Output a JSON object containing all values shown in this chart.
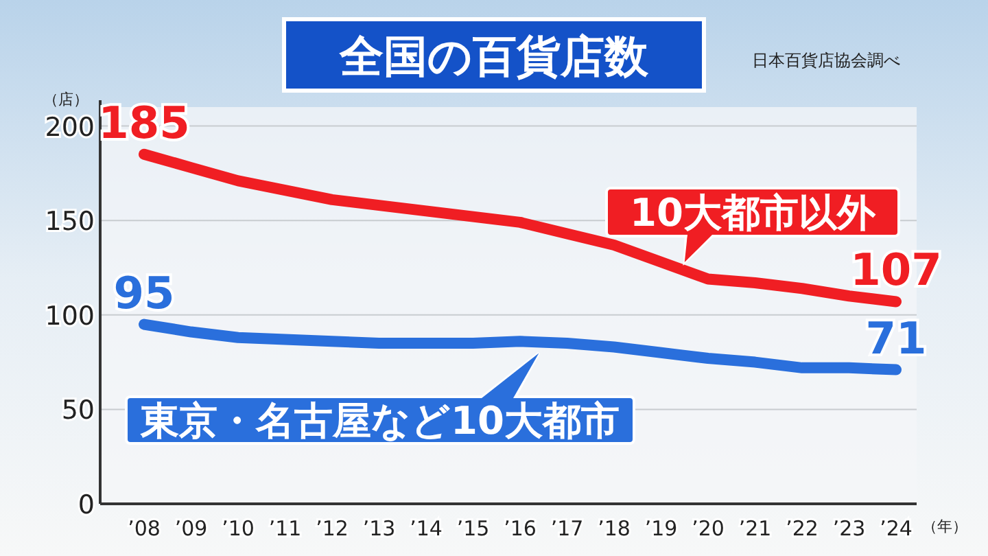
{
  "chart_data": {
    "type": "line",
    "title": "全国の百貨店数",
    "ylabel": "（店）",
    "xlabel": "（年）",
    "categories": [
      "’08",
      "’09",
      "’10",
      "’11",
      "’12",
      "’13",
      "’14",
      "’15",
      "’16",
      "’17",
      "’18",
      "’19",
      "’20",
      "’21",
      "’22",
      "’23",
      "’24"
    ],
    "series": [
      {
        "name": "10大都市以外",
        "color": "#f01e23",
        "values": [
          185,
          178,
          171,
          166,
          161,
          158,
          155,
          152,
          149,
          143,
          137,
          128,
          119,
          117,
          114,
          110,
          107
        ],
        "value_labels": [
          "185",
          null,
          null,
          null,
          null,
          null,
          null,
          null,
          null,
          null,
          null,
          null,
          null,
          null,
          null,
          null,
          "107"
        ]
      },
      {
        "name": "東京・名古屋など10大都市",
        "color": "#2a6fdc",
        "values": [
          95,
          91,
          88,
          87,
          86,
          85,
          85,
          85,
          86,
          85,
          83,
          80,
          77,
          75,
          72,
          72,
          71
        ],
        "value_labels": [
          "95",
          null,
          null,
          null,
          null,
          null,
          null,
          null,
          null,
          null,
          null,
          null,
          null,
          null,
          null,
          null,
          "71"
        ]
      }
    ],
    "ylim": [
      0,
      210
    ],
    "yticks": [
      0,
      50,
      100,
      150,
      200
    ],
    "grid": "y",
    "marker": "none",
    "line_style": "solid",
    "annotations": [
      "日本百貨店協会調べ"
    ]
  }
}
